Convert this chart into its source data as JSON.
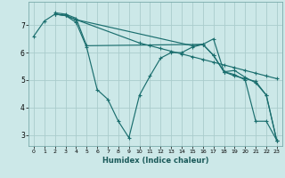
{
  "xlabel": "Humidex (Indice chaleur)",
  "bg_color": "#cce8e8",
  "grid_color_major": "#aacccc",
  "grid_color_minor": "#ddeaea",
  "line_color": "#1a6e6e",
  "xlim": [
    -0.5,
    23.5
  ],
  "ylim": [
    2.6,
    7.85
  ],
  "yticks": [
    3,
    4,
    5,
    6,
    7
  ],
  "xticks": [
    0,
    1,
    2,
    3,
    4,
    5,
    6,
    7,
    8,
    9,
    10,
    11,
    12,
    13,
    14,
    15,
    16,
    17,
    18,
    19,
    20,
    21,
    22,
    23
  ],
  "lines": [
    {
      "x": [
        0,
        1,
        2,
        3,
        4,
        5,
        6,
        7,
        8,
        9,
        10,
        11,
        12,
        13,
        14,
        15,
        16,
        17,
        18,
        19,
        20,
        21,
        22,
        23
      ],
      "y": [
        6.6,
        7.15,
        7.4,
        7.35,
        7.1,
        6.2,
        4.65,
        4.3,
        3.5,
        2.9,
        4.45,
        5.15,
        5.8,
        6.0,
        6.0,
        6.2,
        6.3,
        5.9,
        5.3,
        5.2,
        5.0,
        3.5,
        3.5,
        2.8
      ]
    },
    {
      "x": [
        2,
        3,
        4,
        10,
        11,
        12,
        13,
        14,
        15,
        16,
        17,
        18,
        19,
        20,
        21,
        22,
        23
      ],
      "y": [
        7.4,
        7.35,
        7.2,
        6.35,
        6.25,
        6.15,
        6.05,
        5.95,
        5.85,
        5.75,
        5.65,
        5.55,
        5.45,
        5.35,
        5.25,
        5.15,
        5.05
      ]
    },
    {
      "x": [
        2,
        3,
        4,
        15,
        16,
        17,
        18,
        19,
        20,
        21,
        22,
        23
      ],
      "y": [
        7.4,
        7.35,
        7.2,
        6.25,
        6.3,
        5.9,
        5.3,
        5.15,
        5.05,
        4.95,
        4.45,
        2.78
      ]
    },
    {
      "x": [
        2,
        3,
        4,
        5,
        16,
        17,
        18,
        19,
        20,
        21,
        22,
        23
      ],
      "y": [
        7.45,
        7.4,
        7.25,
        6.25,
        6.3,
        6.5,
        5.3,
        5.35,
        5.1,
        4.9,
        4.45,
        2.78
      ]
    }
  ]
}
